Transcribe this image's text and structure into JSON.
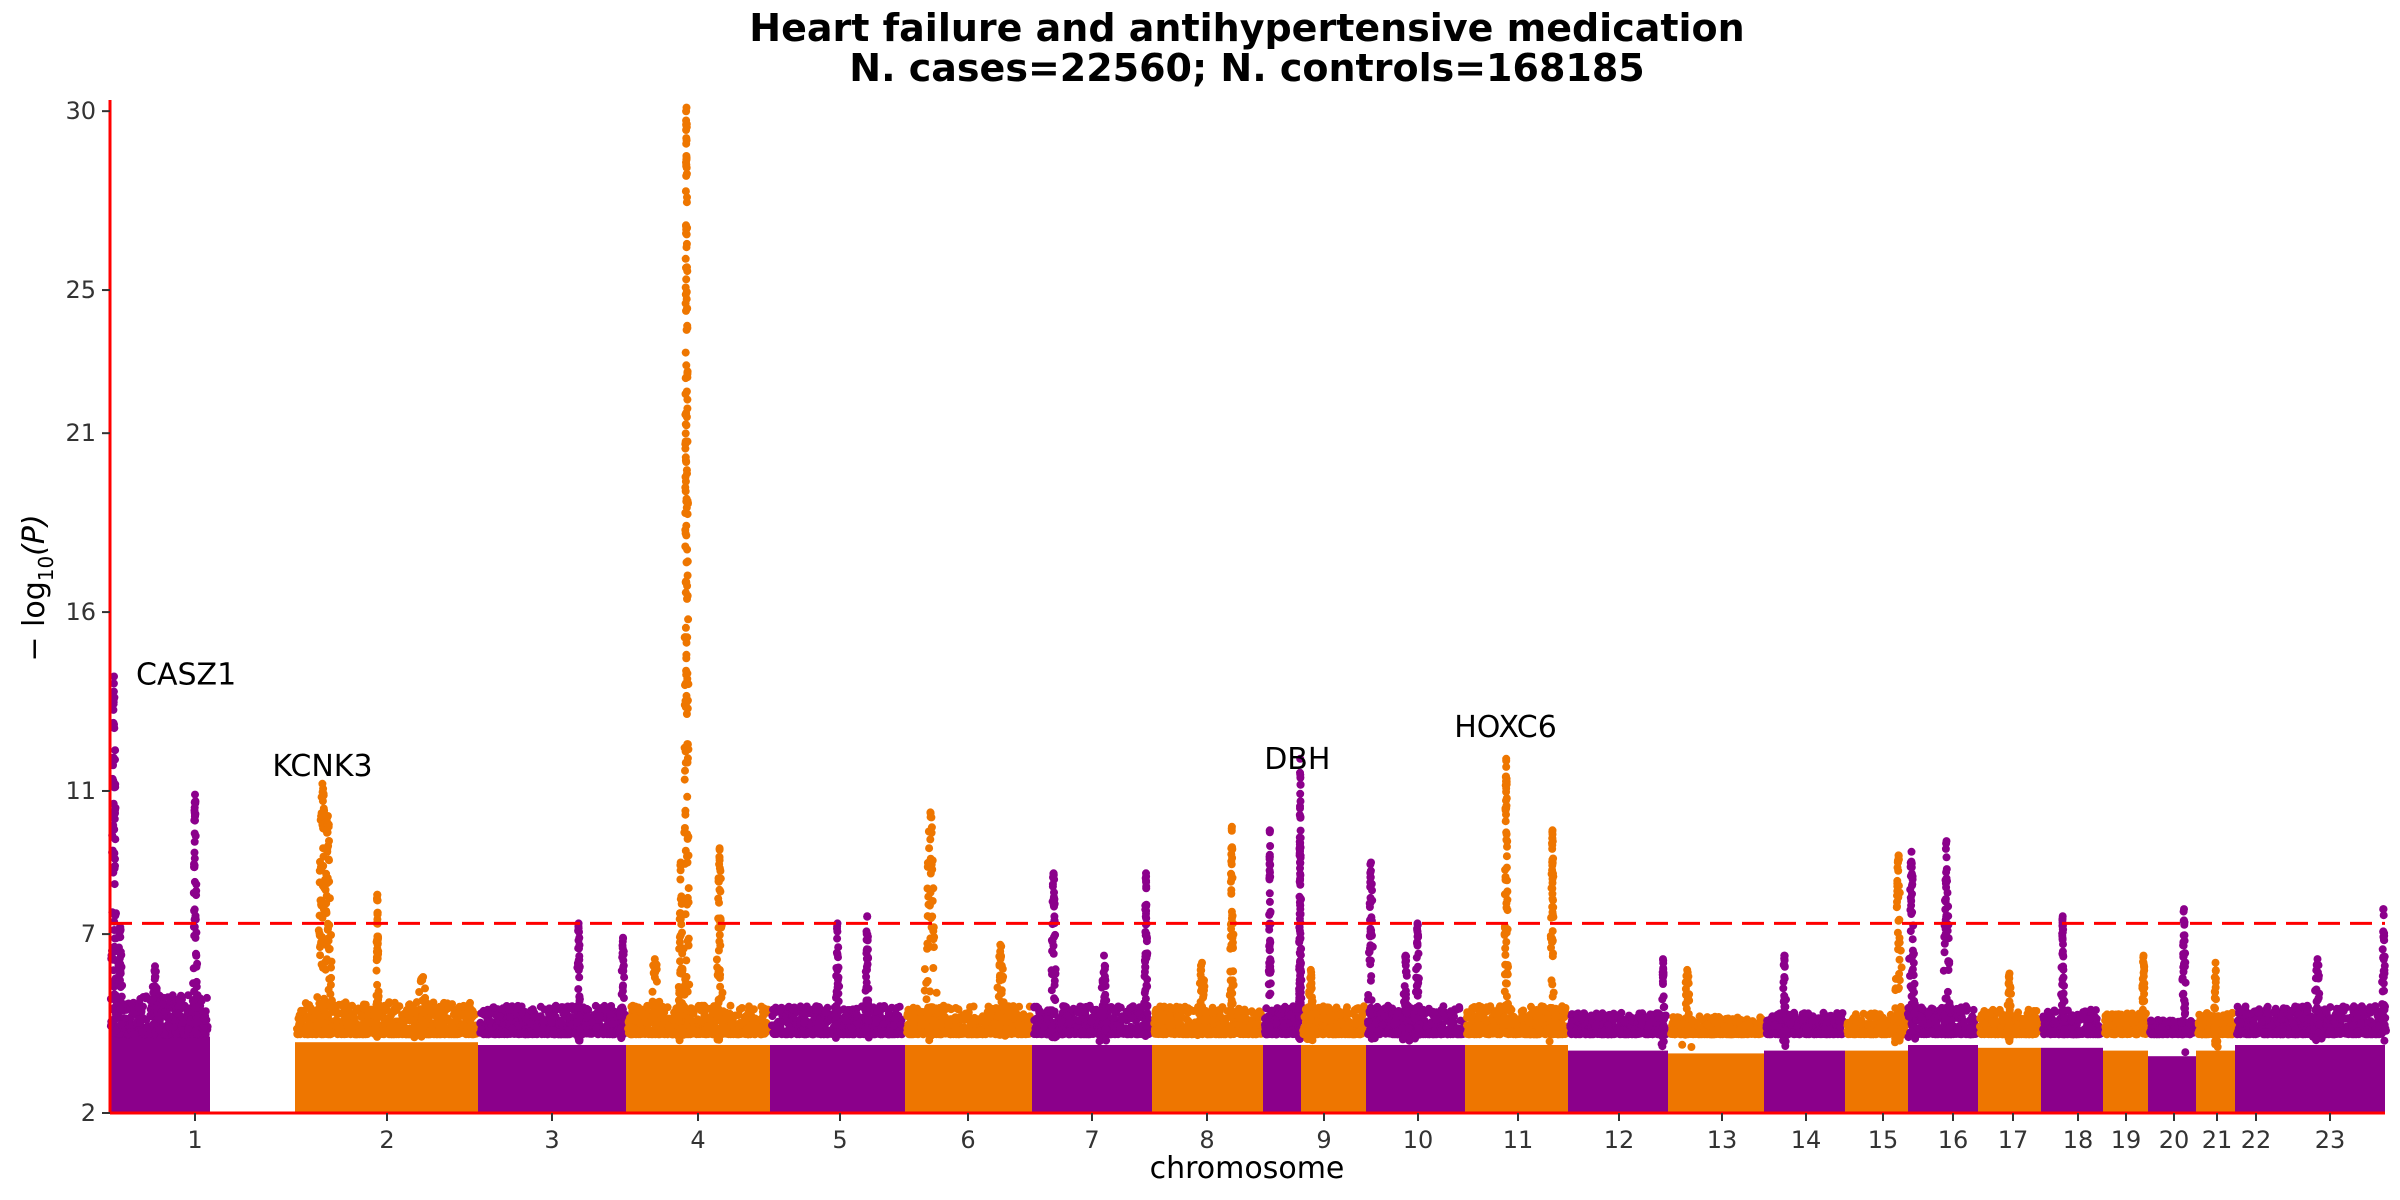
{
  "chart_data": {
    "type": "scatter",
    "subtype": "manhattan",
    "title": "Heart failure and antihypertensive medication",
    "subtitle": "N. cases=22560; N. controls=168185",
    "xlabel": "chromosome",
    "ylabel_prefix": "− log",
    "ylabel_sub": "10",
    "ylabel_suffix": "(P)",
    "ylim": [
      2,
      30.2
    ],
    "yticks": [
      2,
      7,
      11,
      16,
      21,
      25,
      30
    ],
    "significance_threshold": 7.3,
    "colors": {
      "odd": "#8B008B",
      "even": "#EE7600",
      "threshold": "#FF0000",
      "axis": "#FF0000"
    },
    "chromosomes": [
      {
        "label": "1",
        "color": "odd",
        "base_max": 5.3,
        "peaks": [
          {
            "pos": 0.04,
            "top": 14.2,
            "w": 0.018
          },
          {
            "pos": 0.1,
            "top": 7.2,
            "w": 0.02
          },
          {
            "pos": 0.45,
            "top": 6.1,
            "w": 0.03
          },
          {
            "pos": 0.85,
            "top": 10.9,
            "w": 0.015
          }
        ]
      },
      {
        "label": "2",
        "color": "even",
        "base_max": 5.1,
        "peaks": [
          {
            "pos": 0.15,
            "top": 11.2,
            "w": 0.02
          },
          {
            "pos": 0.18,
            "top": 10.3,
            "w": 0.015
          },
          {
            "pos": 0.45,
            "top": 8.1,
            "w": 0.005
          },
          {
            "pos": 0.7,
            "top": 5.8,
            "w": 0.03
          }
        ]
      },
      {
        "label": "3",
        "color": "odd",
        "base_max": 5.0,
        "peaks": [
          {
            "pos": 0.68,
            "top": 7.3,
            "w": 0.01
          },
          {
            "pos": 0.98,
            "top": 6.9,
            "w": 0.01
          }
        ]
      },
      {
        "label": "4",
        "color": "even",
        "base_max": 5.0,
        "peaks": [
          {
            "pos": 0.42,
            "top": 30.1,
            "w": 0.01
          },
          {
            "pos": 0.38,
            "top": 9.0,
            "w": 0.01
          },
          {
            "pos": 0.65,
            "top": 9.4,
            "w": 0.015
          },
          {
            "pos": 0.2,
            "top": 6.3,
            "w": 0.03
          }
        ]
      },
      {
        "label": "5",
        "color": "odd",
        "base_max": 5.0,
        "peaks": [
          {
            "pos": 0.5,
            "top": 7.3,
            "w": 0.01
          },
          {
            "pos": 0.72,
            "top": 7.5,
            "w": 0.01
          }
        ]
      },
      {
        "label": "6",
        "color": "even",
        "base_max": 5.0,
        "peaks": [
          {
            "pos": 0.2,
            "top": 10.4,
            "w": 0.03
          },
          {
            "pos": 0.75,
            "top": 6.7,
            "w": 0.03
          }
        ]
      },
      {
        "label": "7",
        "color": "odd",
        "base_max": 5.0,
        "peaks": [
          {
            "pos": 0.18,
            "top": 8.7,
            "w": 0.015
          },
          {
            "pos": 0.95,
            "top": 8.7,
            "w": 0.01
          },
          {
            "pos": 0.6,
            "top": 6.4,
            "w": 0.02
          }
        ]
      },
      {
        "label": "8",
        "color": "even",
        "base_max": 5.0,
        "peaks": [
          {
            "pos": 0.72,
            "top": 10.0,
            "w": 0.012
          },
          {
            "pos": 0.45,
            "top": 6.2,
            "w": 0.03
          }
        ]
      },
      {
        "label": "9",
        "color": "odd",
        "base_max": 5.0,
        "peaks": [
          {
            "pos": 0.18,
            "top": 9.9,
            "w": 0.02
          },
          {
            "pos": 0.98,
            "top": 11.9,
            "w": 0.01
          },
          {
            "pos": 0.97,
            "top": 9.5,
            "w": 0.01
          }
        ]
      },
      {
        "label": "10",
        "color": "even",
        "base_max": 5.0,
        "peaks": [
          {
            "pos": 0.15,
            "top": 6.0,
            "w": 0.03
          }
        ]
      },
      {
        "label": "11",
        "color": "odd",
        "base_max": 5.0,
        "peaks": [
          {
            "pos": 0.05,
            "top": 9.0,
            "w": 0.02
          },
          {
            "pos": 0.52,
            "top": 7.3,
            "w": 0.015
          },
          {
            "pos": 0.4,
            "top": 6.4,
            "w": 0.02
          }
        ]
      },
      {
        "label": "12",
        "color": "even",
        "base_max": 5.0,
        "peaks": [
          {
            "pos": 0.4,
            "top": 11.9,
            "w": 0.012
          },
          {
            "pos": 0.85,
            "top": 9.9,
            "w": 0.015
          }
        ]
      },
      {
        "label": "13",
        "color": "odd",
        "base_max": 4.8,
        "peaks": [
          {
            "pos": 0.95,
            "top": 6.3,
            "w": 0.01
          }
        ]
      },
      {
        "label": "14",
        "color": "even",
        "base_max": 4.7,
        "peaks": [
          {
            "pos": 0.2,
            "top": 6.0,
            "w": 0.03
          }
        ]
      },
      {
        "label": "15",
        "color": "odd",
        "base_max": 4.8,
        "peaks": [
          {
            "pos": 0.25,
            "top": 6.4,
            "w": 0.02
          }
        ]
      },
      {
        "label": "16",
        "color": "even",
        "base_max": 4.8,
        "peaks": [
          {
            "pos": 0.85,
            "top": 9.2,
            "w": 0.04
          }
        ]
      },
      {
        "label": "17",
        "color": "odd",
        "base_max": 5.0,
        "peaks": [
          {
            "pos": 0.05,
            "top": 9.3,
            "w": 0.03
          },
          {
            "pos": 0.55,
            "top": 9.6,
            "w": 0.03
          }
        ]
      },
      {
        "label": "18",
        "color": "even",
        "base_max": 4.9,
        "peaks": [
          {
            "pos": 0.5,
            "top": 5.9,
            "w": 0.03
          }
        ]
      },
      {
        "label": "19",
        "color": "odd",
        "base_max": 4.9,
        "peaks": [
          {
            "pos": 0.35,
            "top": 7.5,
            "w": 0.02
          }
        ]
      },
      {
        "label": "20",
        "color": "even",
        "base_max": 4.8,
        "peaks": [
          {
            "pos": 0.9,
            "top": 6.4,
            "w": 0.03
          }
        ]
      },
      {
        "label": "21",
        "color": "odd",
        "base_max": 4.6,
        "peaks": [
          {
            "pos": 0.75,
            "top": 7.7,
            "w": 0.03
          }
        ]
      },
      {
        "label": "22",
        "color": "even",
        "base_max": 4.8,
        "peaks": [
          {
            "pos": 0.5,
            "top": 6.2,
            "w": 0.03
          }
        ]
      },
      {
        "label": "23",
        "color": "odd",
        "base_max": 5.0,
        "peaks": [
          {
            "pos": 0.55,
            "top": 6.3,
            "w": 0.02
          },
          {
            "pos": 0.99,
            "top": 7.7,
            "w": 0.01
          }
        ]
      }
    ],
    "annotations": [
      {
        "text": "CASZ1",
        "chromosome": "1",
        "pos": 0.04,
        "value": 14.2
      },
      {
        "text": "KCNK3",
        "chromosome": "2",
        "pos": 0.15,
        "value": 11.2
      },
      {
        "text": "DBH",
        "chromosome": "9",
        "pos": 0.98,
        "value": 11.9
      },
      {
        "text": "HOXC6",
        "chromosome": "12",
        "pos": 0.4,
        "value": 11.9
      }
    ]
  }
}
